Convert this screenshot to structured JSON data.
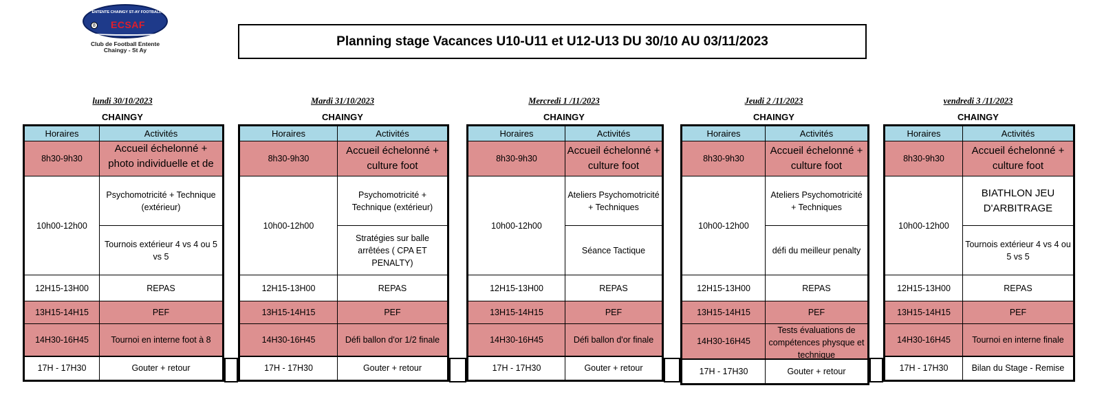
{
  "logo": {
    "top_text": "ENTENTE CHAINGY ST-AY FOOTBALL",
    "abbr": "ECSAF",
    "ball": "8",
    "caption_line1": "Club de Football Entente",
    "caption_line2": "Chaingy - St Ay"
  },
  "title": "Planning stage Vacances U10-U11 et U12-U13 DU 30/10 AU 03/11/2023",
  "headers": {
    "time": "Horaires",
    "activity": "Activités"
  },
  "location": "CHAINGY",
  "days": [
    {
      "label": "lundi  30/10/2023",
      "t0": "8h30-9h30",
      "a0": "Accueil échelonné + photo individuelle et de groupe",
      "t1": "10h00-12h00",
      "a1": "Psychomotricité + Technique (extérieur)",
      "a2": "Tournois extérieur 4 vs 4  ou 5 vs 5",
      "t3": "12H15-13H00",
      "a3": "REPAS",
      "t4": "13H15-14H15",
      "a4": "PEF",
      "t5": "14H30-16H45",
      "a5": "Tournoi en interne foot à 8",
      "t6": "17H - 17H30",
      "a6": "Gouter + retour"
    },
    {
      "label": "Mardi 31/10/2023",
      "t0": "8h30-9h30",
      "a0": "Accueil échelonné + culture foot",
      "t1": "10h00-12h00",
      "a1": "Psychomotricité + Technique (extérieur)",
      "a2": "Stratégies sur balle arrêtées ( CPA ET PENALTY)",
      "t3": "12H15-13H00",
      "a3": "REPAS",
      "t4": "13H15-14H15",
      "a4": "PEF",
      "t5": "14H30-16H45",
      "a5": "Défi ballon d'or 1/2 finale",
      "t6": "17H - 17H30",
      "a6": "Gouter + retour"
    },
    {
      "label": "Mercredi 1 /11/2023",
      "t0": "8h30-9h30",
      "a0": "Accueil échelonné + culture foot",
      "t1": "10h00-12h00",
      "a1": "Ateliers Psychomotricité + Techniques",
      "a2": "Séance Tactique",
      "t3": "12H15-13H00",
      "a3": "REPAS",
      "t4": "13H15-14H15",
      "a4": "PEF",
      "t5": "14H30-16H45",
      "a5": "Défi ballon d'or finale",
      "t6": "17H - 17H30",
      "a6": "Gouter + retour"
    },
    {
      "label": "Jeudi 2 /11/2023",
      "t0": "8h30-9h30",
      "a0": "Accueil échelonné + culture foot",
      "t1": "10h00-12h00",
      "a1": "Ateliers Psychomotricité + Techniques",
      "a2": "défi du meilleur penalty",
      "t3": "12H15-13H00",
      "a3": "REPAS",
      "t4": "13H15-14H15",
      "a4": "PEF",
      "t5": "14H30-16H45",
      "a5": "Tests évaluations de compétences physque et technique",
      "t6": "17H - 17H30",
      "a6": "Gouter + retour"
    },
    {
      "label": "vendredi 3 /11/2023",
      "t0": "8h30-9h30",
      "a0": "Accueil échelonné + culture foot",
      "t1": "10h00-12h00",
      "a1": "BIATHLON JEU D'ARBITRAGE",
      "a2": "Tournois extérieur 4 vs 4  ou 5 vs 5",
      "t3": "12H15-13H00",
      "a3": "REPAS",
      "t4": "13H15-14H15",
      "a4": "PEF",
      "t5": "14H30-16H45",
      "a5": "Tournoi en interne finale",
      "t6": "17H - 17H30",
      "a6": "Bilan du Stage -  Remise"
    }
  ],
  "colors": {
    "header_bg": "#a9d8e6",
    "event_bg": "#dd9090",
    "logo_blue": "#1e3a8a",
    "logo_red": "#e11d2a"
  }
}
